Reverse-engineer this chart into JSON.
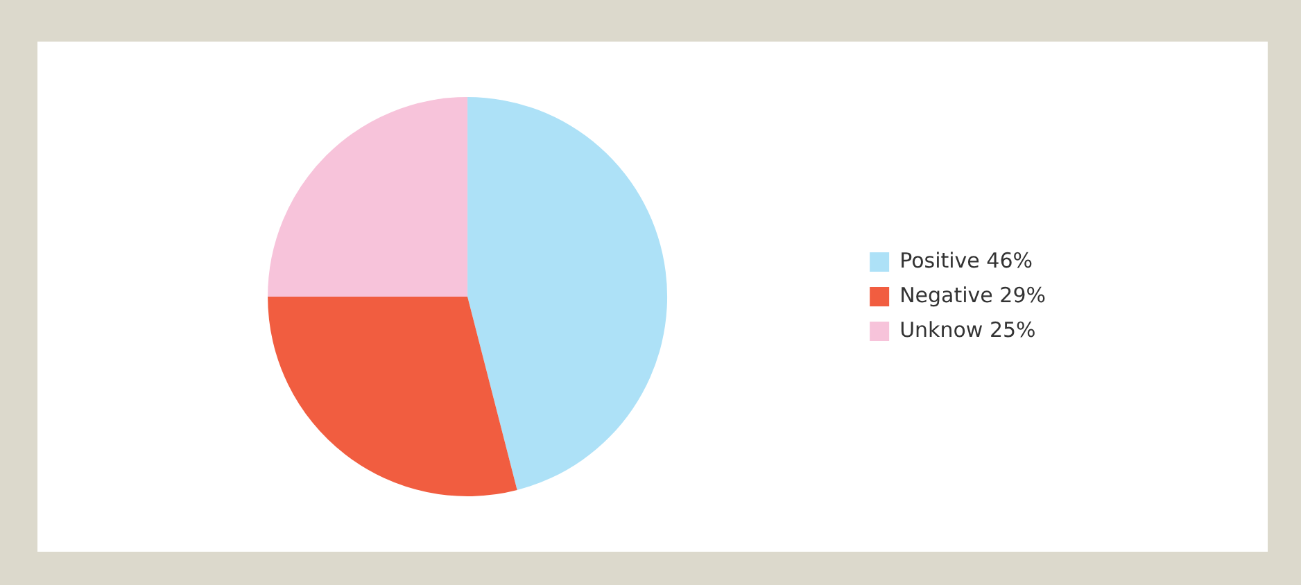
{
  "chart_data": {
    "type": "pie",
    "categories": [
      "Positive 46%",
      "Negative 29%",
      "Unknow 25%"
    ],
    "values": [
      46,
      29,
      25
    ],
    "colors": [
      "#ade1f7",
      "#f15d40",
      "#f7c3da"
    ],
    "legend": "right"
  }
}
